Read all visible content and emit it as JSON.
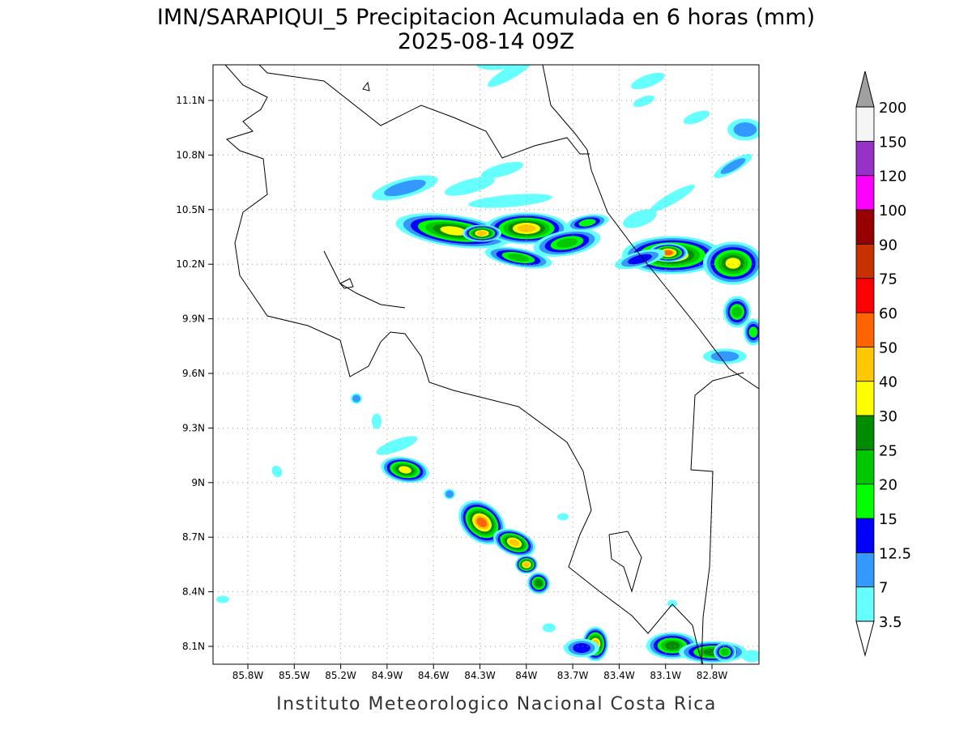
{
  "title": "IMN/SARAPIQUI_5 Precipitacion Acumulada en 6 horas (mm)",
  "subtitle": "2025-08-14 09Z",
  "map": {
    "x_labels": [
      "85.8W",
      "85.5W",
      "85.2W",
      "84.9W",
      "84.6W",
      "84.3W",
      "84W",
      "83.7W",
      "83.4W",
      "83.1W",
      "82.8W"
    ],
    "y_labels": [
      "11.1N",
      "10.8N",
      "10.5N",
      "10.2N",
      "9.9N",
      "9.6N",
      "9.3N",
      "9N",
      "8.7N",
      "8.4N",
      "8.1N"
    ]
  },
  "colorbar": {
    "levels": [
      "3.5",
      "7",
      "12.5",
      "15",
      "20",
      "25",
      "30",
      "40",
      "50",
      "60",
      "75",
      "90",
      "100",
      "120",
      "150",
      "200"
    ],
    "colors": [
      "#66ffff",
      "#3399ff",
      "#0000ff",
      "#00ff00",
      "#00c800",
      "#008c00",
      "#ffff00",
      "#ffc800",
      "#ff6400",
      "#ff0000",
      "#c83200",
      "#960000",
      "#ff00ff",
      "#9632c8",
      "#f5f5f5"
    ],
    "below_color": "#ffffff",
    "above_color": "#a0a0a0"
  },
  "footer": "Instituto Meteorologico Nacional Costa Rica"
}
